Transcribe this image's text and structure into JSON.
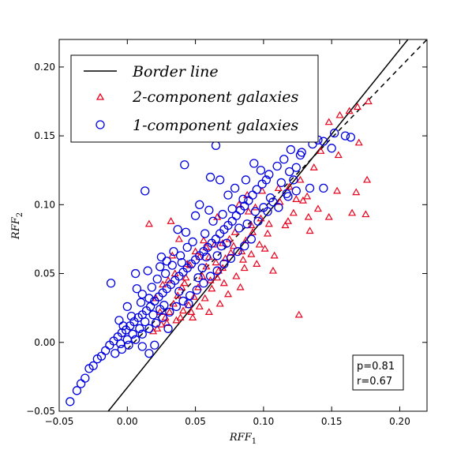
{
  "chart_data": {
    "type": "scatter",
    "xlabel": "RFF",
    "xlabel_sub": "1",
    "ylabel": "RFF",
    "ylabel_sub": "2",
    "xlim": [
      -0.05,
      0.22
    ],
    "ylim": [
      -0.05,
      0.22
    ],
    "xticks": [
      -0.05,
      0.0,
      0.05,
      0.1,
      0.15,
      0.2
    ],
    "xtick_labels": [
      "−0.05",
      "0.00",
      "0.05",
      "0.10",
      "0.15",
      "0.20"
    ],
    "yticks": [
      -0.05,
      0.0,
      0.05,
      0.1,
      0.15,
      0.2
    ],
    "ytick_labels": [
      "−0.05",
      "0.00",
      "0.05",
      "0.10",
      "0.15",
      "0.20"
    ],
    "legend_position": "upper-left",
    "lines": [
      {
        "name": "Border line",
        "style": "solid",
        "color": "#000000",
        "x": [
          -0.014,
          0.206
        ],
        "y": [
          -0.05,
          0.22
        ]
      },
      {
        "style": "dashed",
        "color": "#000000",
        "x": [
          0.0,
          0.22
        ],
        "y": [
          -0.005,
          0.22
        ]
      }
    ],
    "series": [
      {
        "name": "2-component galaxies",
        "marker": "triangle",
        "color": "#e8001c",
        "points": [
          [
            0.177,
            0.175
          ],
          [
            0.169,
            0.171
          ],
          [
            0.163,
            0.168
          ],
          [
            0.156,
            0.165
          ],
          [
            0.148,
            0.16
          ],
          [
            0.17,
            0.145
          ],
          [
            0.176,
            0.118
          ],
          [
            0.168,
            0.109
          ],
          [
            0.154,
            0.11
          ],
          [
            0.175,
            0.093
          ],
          [
            0.165,
            0.094
          ],
          [
            0.148,
            0.091
          ],
          [
            0.155,
            0.136
          ],
          [
            0.142,
            0.139
          ],
          [
            0.137,
            0.127
          ],
          [
            0.127,
            0.118
          ],
          [
            0.14,
            0.097
          ],
          [
            0.133,
            0.091
          ],
          [
            0.129,
            0.103
          ],
          [
            0.122,
            0.094
          ],
          [
            0.116,
            0.085
          ],
          [
            0.126,
            0.02
          ],
          [
            0.107,
            0.052
          ],
          [
            0.108,
            0.063
          ],
          [
            0.097,
            0.071
          ],
          [
            0.103,
            0.079
          ],
          [
            0.104,
            0.086
          ],
          [
            0.098,
            0.09
          ],
          [
            0.092,
            0.08
          ],
          [
            0.087,
            0.074
          ],
          [
            0.091,
            0.064
          ],
          [
            0.086,
            0.054
          ],
          [
            0.08,
            0.048
          ],
          [
            0.076,
            0.065
          ],
          [
            0.079,
            0.08
          ],
          [
            0.072,
            0.061
          ],
          [
            0.07,
            0.054
          ],
          [
            0.066,
            0.047
          ],
          [
            0.062,
            0.039
          ],
          [
            0.064,
            0.071
          ],
          [
            0.06,
            0.062
          ],
          [
            0.058,
            0.055
          ],
          [
            0.055,
            0.048
          ],
          [
            0.052,
            0.04
          ],
          [
            0.049,
            0.033
          ],
          [
            0.053,
            0.062
          ],
          [
            0.056,
            0.074
          ],
          [
            0.046,
            0.056
          ],
          [
            0.043,
            0.047
          ],
          [
            0.04,
            0.04
          ],
          [
            0.037,
            0.034
          ],
          [
            0.034,
            0.028
          ],
          [
            0.031,
            0.022
          ],
          [
            0.028,
            0.018
          ],
          [
            0.025,
            0.013
          ],
          [
            0.022,
            0.01
          ],
          [
            0.019,
            0.008
          ],
          [
            0.045,
            0.027
          ],
          [
            0.041,
            0.023
          ],
          [
            0.048,
            0.018
          ],
          [
            0.06,
            0.022
          ],
          [
            0.068,
            0.028
          ],
          [
            0.074,
            0.035
          ],
          [
            0.083,
            0.04
          ],
          [
            0.095,
            0.057
          ],
          [
            0.101,
            0.068
          ],
          [
            0.112,
            0.102
          ],
          [
            0.118,
            0.088
          ],
          [
            0.088,
            0.107
          ],
          [
            0.082,
            0.1
          ],
          [
            0.066,
            0.091
          ],
          [
            0.032,
            0.088
          ],
          [
            0.016,
            0.086
          ],
          [
            0.033,
            0.063
          ],
          [
            0.038,
            0.075
          ],
          [
            0.044,
            0.057
          ],
          [
            0.026,
            0.042
          ],
          [
            0.021,
            0.032
          ],
          [
            0.03,
            0.045
          ],
          [
            0.035,
            0.05
          ],
          [
            0.05,
            0.066
          ],
          [
            0.058,
            0.069
          ],
          [
            0.065,
            0.058
          ],
          [
            0.07,
            0.072
          ],
          [
            0.075,
            0.075
          ],
          [
            0.078,
            0.07
          ],
          [
            0.084,
            0.066
          ],
          [
            0.089,
            0.095
          ],
          [
            0.094,
            0.098
          ],
          [
            0.099,
            0.11
          ],
          [
            0.111,
            0.112
          ],
          [
            0.057,
            0.032
          ],
          [
            0.053,
            0.026
          ],
          [
            0.047,
            0.022
          ],
          [
            0.039,
            0.018
          ],
          [
            0.036,
            0.016
          ],
          [
            0.029,
            0.014
          ],
          [
            0.024,
            0.022
          ],
          [
            0.042,
            0.043
          ],
          [
            0.061,
            0.045
          ],
          [
            0.067,
            0.052
          ],
          [
            0.071,
            0.043
          ],
          [
            0.085,
            0.06
          ],
          [
            0.091,
            0.085
          ],
          [
            0.119,
            0.113
          ],
          [
            0.124,
            0.104
          ],
          [
            0.132,
            0.106
          ],
          [
            0.134,
            0.081
          ]
        ]
      },
      {
        "name": "1-component galaxies",
        "marker": "circle",
        "color": "#0000e0",
        "points": [
          [
            -0.042,
            -0.043
          ],
          [
            -0.037,
            -0.035
          ],
          [
            -0.034,
            -0.03
          ],
          [
            -0.031,
            -0.026
          ],
          [
            -0.028,
            -0.019
          ],
          [
            -0.025,
            -0.017
          ],
          [
            -0.022,
            -0.012
          ],
          [
            -0.019,
            -0.01
          ],
          [
            -0.016,
            -0.006
          ],
          [
            -0.013,
            -0.002
          ],
          [
            -0.01,
            0.001
          ],
          [
            -0.007,
            0.004
          ],
          [
            -0.004,
            0.007
          ],
          [
            -0.001,
            0.009
          ],
          [
            0.002,
            0.012
          ],
          [
            0.005,
            0.015
          ],
          [
            0.008,
            0.018
          ],
          [
            0.011,
            0.02
          ],
          [
            0.014,
            0.023
          ],
          [
            0.017,
            0.026
          ],
          [
            0.02,
            0.03
          ],
          [
            0.023,
            0.033
          ],
          [
            0.026,
            0.036
          ],
          [
            0.029,
            0.039
          ],
          [
            0.032,
            0.042
          ],
          [
            0.035,
            0.045
          ],
          [
            0.038,
            0.048
          ],
          [
            0.041,
            0.051
          ],
          [
            0.044,
            0.054
          ],
          [
            0.047,
            0.057
          ],
          [
            0.05,
            0.06
          ],
          [
            0.053,
            0.063
          ],
          [
            0.056,
            0.066
          ],
          [
            0.059,
            0.069
          ],
          [
            0.062,
            0.072
          ],
          [
            0.065,
            0.075
          ],
          [
            0.068,
            0.079
          ],
          [
            0.071,
            0.082
          ],
          [
            0.074,
            0.085
          ],
          [
            0.077,
            0.088
          ],
          [
            0.08,
            0.092
          ],
          [
            0.083,
            0.096
          ],
          [
            0.086,
            0.099
          ],
          [
            0.089,
            0.103
          ],
          [
            0.092,
            0.107
          ],
          [
            0.095,
            0.111
          ],
          [
            0.099,
            0.115
          ],
          [
            0.104,
            0.122
          ],
          [
            0.11,
            0.128
          ],
          [
            0.115,
            0.133
          ],
          [
            0.12,
            0.14
          ],
          [
            0.128,
            0.138
          ],
          [
            0.136,
            0.144
          ],
          [
            0.144,
            0.146
          ],
          [
            0.152,
            0.152
          ],
          [
            0.16,
            0.15
          ],
          [
            0.164,
            0.149
          ],
          [
            0.131,
            0.154
          ],
          [
            0.14,
            0.147
          ],
          [
            0.15,
            0.141
          ],
          [
            0.144,
            0.112
          ],
          [
            0.134,
            0.112
          ],
          [
            0.124,
            0.11
          ],
          [
            0.103,
            0.095
          ],
          [
            0.096,
            0.088
          ],
          [
            0.091,
            0.075
          ],
          [
            0.086,
            0.07
          ],
          [
            0.081,
            0.066
          ],
          [
            0.076,
            0.061
          ],
          [
            0.071,
            0.057
          ],
          [
            0.066,
            0.052
          ],
          [
            0.061,
            0.048
          ],
          [
            0.056,
            0.043
          ],
          [
            0.051,
            0.038
          ],
          [
            0.046,
            0.034
          ],
          [
            0.041,
            0.03
          ],
          [
            0.036,
            0.026
          ],
          [
            0.031,
            0.022
          ],
          [
            0.026,
            0.018
          ],
          [
            0.021,
            0.014
          ],
          [
            0.016,
            0.01
          ],
          [
            0.011,
            0.006
          ],
          [
            0.006,
            0.002
          ],
          [
            0.001,
            -0.002
          ],
          [
            -0.004,
            -0.005
          ],
          [
            -0.009,
            -0.008
          ],
          [
            -0.012,
            0.043
          ],
          [
            0.013,
            0.11
          ],
          [
            0.006,
            0.05
          ],
          [
            0.011,
            0.035
          ],
          [
            0.016,
            0.032
          ],
          [
            0.024,
            0.055
          ],
          [
            0.022,
            0.046
          ],
          [
            0.029,
            0.059
          ],
          [
            0.034,
            0.066
          ],
          [
            0.037,
            0.082
          ],
          [
            0.043,
            0.08
          ],
          [
            0.05,
            0.092
          ],
          [
            0.053,
            0.1
          ],
          [
            0.06,
            0.096
          ],
          [
            0.065,
            0.143
          ],
          [
            0.042,
            0.129
          ],
          [
            0.061,
            0.12
          ],
          [
            0.068,
            0.118
          ],
          [
            0.074,
            0.107
          ],
          [
            0.079,
            0.112
          ],
          [
            0.087,
            0.118
          ],
          [
            0.093,
            0.13
          ],
          [
            0.098,
            0.125
          ],
          [
            0.102,
            0.118
          ],
          [
            0.111,
            0.098
          ],
          [
            0.117,
            0.108
          ],
          [
            0.122,
            0.118
          ],
          [
            0.127,
            0.136
          ],
          [
            0.118,
            0.106
          ],
          [
            0.107,
            0.102
          ],
          [
            0.085,
            0.104
          ],
          [
            0.077,
            0.097
          ],
          [
            0.07,
            0.093
          ],
          [
            0.063,
            0.088
          ],
          [
            0.057,
            0.079
          ],
          [
            0.048,
            0.073
          ],
          [
            0.044,
            0.069
          ],
          [
            0.039,
            0.063
          ],
          [
            0.033,
            0.056
          ],
          [
            0.028,
            0.05
          ],
          [
            0.018,
            0.04
          ],
          [
            0.01,
            0.029
          ],
          [
            0.003,
            0.019
          ],
          [
            -0.003,
            0.012
          ],
          [
            -0.006,
            0.016
          ],
          [
            0.0,
            0.026
          ],
          [
            0.007,
            0.039
          ],
          [
            0.015,
            0.052
          ],
          [
            0.025,
            0.062
          ],
          [
            0.04,
            0.058
          ],
          [
            0.055,
            0.054
          ],
          [
            0.069,
            0.07
          ],
          [
            0.082,
            0.083
          ],
          [
            0.094,
            0.095
          ],
          [
            0.105,
            0.105
          ],
          [
            0.011,
            -0.003
          ],
          [
            0.016,
            -0.008
          ],
          [
            0.02,
            -0.002
          ],
          [
            0.03,
            0.01
          ],
          [
            0.045,
            0.028
          ],
          [
            0.058,
            0.062
          ],
          [
            0.073,
            0.072
          ],
          [
            0.088,
            0.086
          ],
          [
            0.1,
            0.098
          ],
          [
            0.113,
            0.116
          ],
          [
            0.119,
            0.124
          ],
          [
            0.124,
            0.127
          ],
          [
            0.066,
            0.063
          ],
          [
            0.052,
            0.047
          ],
          [
            0.038,
            0.037
          ],
          [
            0.027,
            0.027
          ],
          [
            0.019,
            0.02
          ],
          [
            0.009,
            0.01
          ],
          [
            0.0,
            0.002
          ],
          [
            -0.005,
            -0.001
          ],
          [
            0.004,
            0.006
          ],
          [
            0.013,
            0.015
          ],
          [
            0.024,
            0.024
          ]
        ]
      }
    ],
    "annotations": [
      "p=0.81",
      "r=0.67"
    ]
  }
}
